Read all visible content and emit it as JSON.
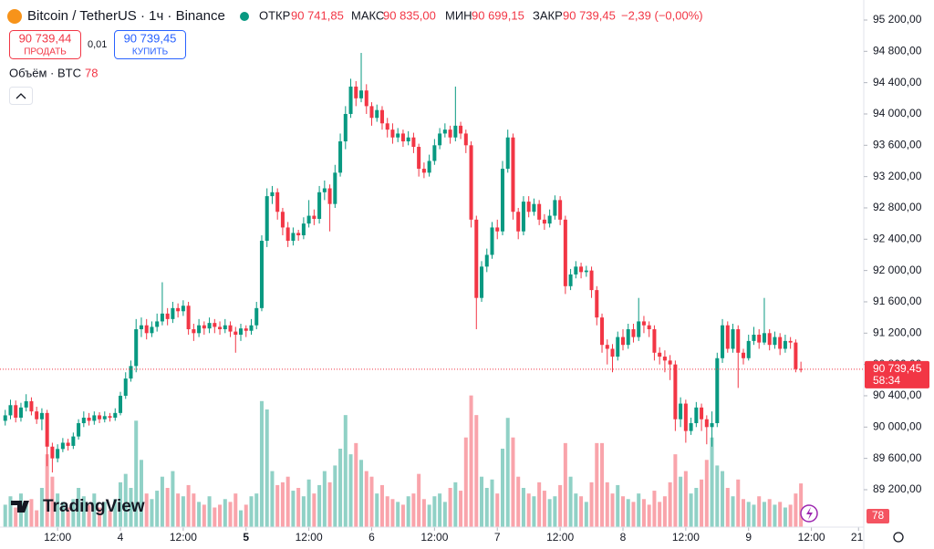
{
  "header": {
    "symbol": "Bitcoin / TetherUS · 1ч · Binance",
    "ohlc": [
      {
        "key": "ОТКР",
        "value": "90 741,85"
      },
      {
        "key": "МАКС",
        "value": "90 835,00"
      },
      {
        "key": "МИН",
        "value": "90 699,15"
      },
      {
        "key": "ЗАКР",
        "value": "90 739,45"
      }
    ],
    "change": "−2,39 (−0,00%)"
  },
  "trade": {
    "sell_price": "90 739,44",
    "sell": "ПРОДАТЬ",
    "spread": "0,01",
    "buy_price": "90 739,45",
    "buy": "КУПИТЬ"
  },
  "volume_legend": {
    "label": "Объём · BTC",
    "value": "78"
  },
  "price_tag": {
    "price": "90 739,45",
    "countdown": "58:34"
  },
  "volume_tag": "78",
  "brand": "TradingView",
  "chart_data": {
    "type": "candlestick",
    "up_color": "#089981",
    "down_color": "#f23645",
    "grid": false,
    "xlim": [
      -1,
      164
    ],
    "xticks": [
      {
        "value": 10,
        "label": "12:00"
      },
      {
        "value": 22,
        "label": "4"
      },
      {
        "value": 34,
        "label": "12:00"
      },
      {
        "value": 46,
        "label": "5"
      },
      {
        "value": 58,
        "label": "12:00"
      },
      {
        "value": 70,
        "label": "6"
      },
      {
        "value": 82,
        "label": "12:00"
      },
      {
        "value": 94,
        "label": "7"
      },
      {
        "value": 106,
        "label": "12:00"
      },
      {
        "value": 118,
        "label": "8"
      },
      {
        "value": 130,
        "label": "12:00"
      },
      {
        "value": 142,
        "label": "9"
      },
      {
        "value": 154,
        "label": "12:00"
      },
      {
        "value": 163,
        "label": "21:"
      }
    ],
    "ylim": [
      88722,
      95456
    ],
    "yticks": [
      {
        "value": 89200,
        "label": "89 200,00"
      },
      {
        "value": 89600,
        "label": "89 600,00"
      },
      {
        "value": 90000,
        "label": "90 000,00"
      },
      {
        "value": 90400,
        "label": "90 400,00"
      },
      {
        "value": 90800,
        "label": "90 800,00"
      },
      {
        "value": 91200,
        "label": "91 200,00"
      },
      {
        "value": 91600,
        "label": "91 600,00"
      },
      {
        "value": 92000,
        "label": "92 000,00"
      },
      {
        "value": 92400,
        "label": "92 400,00"
      },
      {
        "value": 92800,
        "label": "92 800,00"
      },
      {
        "value": 93200,
        "label": "93 200,00"
      },
      {
        "value": 93600,
        "label": "93 600,00"
      },
      {
        "value": 94000,
        "label": "94 000,00"
      },
      {
        "value": 94400,
        "label": "94 400,00"
      },
      {
        "value": 94800,
        "label": "94 800,00"
      },
      {
        "value": 95200,
        "label": "95 200,00"
      }
    ],
    "vlim": [
      0,
      350
    ],
    "open": [
      90080,
      90150,
      90280,
      90120,
      90250,
      90330,
      90200,
      90100,
      90180,
      89750,
      89600,
      89720,
      89800,
      89760,
      89880,
      90050,
      90120,
      90080,
      90150,
      90100,
      90140,
      90120,
      90180,
      90400,
      90620,
      90780,
      91250,
      91300,
      91200,
      91280,
      91350,
      91450,
      91380,
      91520,
      91480,
      91550,
      91250,
      91200,
      91300,
      91260,
      91330,
      91280,
      91250,
      91300,
      91220,
      91180,
      91260,
      91230,
      91300,
      91520,
      92380,
      92950,
      93000,
      92750,
      92550,
      92380,
      92480,
      92450,
      92600,
      92700,
      92660,
      93000,
      93050,
      92850,
      93250,
      93650,
      94000,
      94350,
      94200,
      94300,
      94100,
      93950,
      94050,
      93880,
      93800,
      93700,
      93750,
      93650,
      93700,
      93580,
      93300,
      93250,
      93400,
      93600,
      93750,
      93800,
      93700,
      93850,
      93750,
      93600,
      92650,
      91650,
      92050,
      92200,
      92550,
      92500,
      93300,
      93700,
      92750,
      92500,
      92880,
      92750,
      92850,
      92650,
      92600,
      92700,
      92900,
      92650,
      91800,
      91950,
      92050,
      91980,
      92000,
      91750,
      91400,
      91050,
      91000,
      90900,
      91150,
      91050,
      91250,
      91150,
      91350,
      91300,
      91250,
      90950,
      90900,
      90850,
      90800,
      90100,
      90300,
      89950,
      90050,
      90250,
      90100,
      90000,
      90050,
      90880,
      91300,
      91000,
      91250,
      90950,
      90880,
      91100,
      91180,
      91080,
      91200,
      91050,
      91150,
      91000,
      91100,
      91080,
      90741.85
    ],
    "high": [
      90220,
      90350,
      90340,
      90310,
      90420,
      90380,
      90260,
      90240,
      90220,
      89800,
      89780,
      89860,
      89850,
      89930,
      90100,
      90200,
      90180,
      90200,
      90190,
      90200,
      90180,
      90240,
      90450,
      90700,
      90850,
      91380,
      91400,
      91380,
      91350,
      91450,
      91850,
      91520,
      91600,
      91580,
      91620,
      91600,
      91320,
      91380,
      91350,
      91400,
      91380,
      91350,
      91380,
      91350,
      91280,
      91320,
      91300,
      91380,
      91600,
      92450,
      93050,
      93080,
      93050,
      92800,
      92620,
      92550,
      92520,
      92680,
      92900,
      92780,
      93080,
      93150,
      93100,
      93350,
      93750,
      94100,
      94450,
      94420,
      94780,
      94380,
      94150,
      94120,
      94100,
      93950,
      93880,
      93820,
      93800,
      93780,
      93760,
      93620,
      93380,
      93480,
      93680,
      93820,
      93880,
      93850,
      94350,
      93900,
      93800,
      93650,
      92700,
      92120,
      92280,
      92620,
      92650,
      93400,
      93800,
      93750,
      92800,
      92950,
      92950,
      92920,
      92900,
      92720,
      92780,
      92960,
      92950,
      92700,
      92020,
      92120,
      92100,
      92060,
      92050,
      91800,
      91450,
      91120,
      91060,
      91220,
      91250,
      91320,
      91320,
      91650,
      91420,
      91350,
      91300,
      91020,
      90980,
      90920,
      90850,
      90380,
      90350,
      90120,
      90320,
      90300,
      90150,
      90200,
      90950,
      91380,
      91350,
      91320,
      91300,
      91000,
      91180,
      91280,
      91250,
      91650,
      91250,
      91220,
      91200,
      91180,
      91150,
      91120,
      90835
    ],
    "low": [
      90020,
      90100,
      90060,
      90070,
      90200,
      90150,
      90040,
      89960,
      89500,
      89420,
      89550,
      89680,
      89700,
      89720,
      89840,
      90000,
      90020,
      90030,
      90050,
      90060,
      90070,
      90080,
      90150,
      90360,
      90580,
      90700,
      91150,
      91120,
      91150,
      91220,
      91300,
      91300,
      91330,
      91400,
      91420,
      91180,
      91100,
      91150,
      91180,
      91200,
      91200,
      91180,
      91200,
      91150,
      90950,
      91100,
      91150,
      91180,
      91250,
      91480,
      92300,
      92850,
      92650,
      92450,
      92300,
      92320,
      92380,
      92400,
      92550,
      92580,
      92600,
      92900,
      92500,
      92800,
      93200,
      93550,
      93950,
      94100,
      94150,
      94000,
      93850,
      93900,
      93800,
      93700,
      93620,
      93640,
      93580,
      93600,
      93500,
      93200,
      93180,
      93200,
      93350,
      93550,
      93700,
      93620,
      93650,
      93680,
      93500,
      92550,
      91250,
      91600,
      91980,
      92150,
      92400,
      92450,
      93250,
      92650,
      92400,
      92450,
      92680,
      92700,
      92580,
      92520,
      92550,
      92650,
      92580,
      91700,
      91750,
      91900,
      91900,
      91920,
      91650,
      91300,
      90950,
      90800,
      90700,
      90850,
      90980,
      91000,
      91080,
      91100,
      91200,
      91150,
      90850,
      90800,
      90700,
      90600,
      89950,
      90000,
      89800,
      89900,
      90000,
      89950,
      89780,
      89750,
      90000,
      90820,
      90950,
      90950,
      90500,
      90800,
      90850,
      91050,
      91000,
      91050,
      90980,
      91000,
      90920,
      90950,
      91000,
      90700,
      90699.15
    ],
    "close": [
      90150,
      90280,
      90120,
      90250,
      90330,
      90200,
      90100,
      90180,
      89750,
      89600,
      89720,
      89800,
      89760,
      89880,
      90050,
      90120,
      90080,
      90150,
      90100,
      90140,
      90120,
      90180,
      90400,
      90620,
      90780,
      91250,
      91300,
      91200,
      91280,
      91350,
      91450,
      91380,
      91520,
      91480,
      91550,
      91250,
      91200,
      91300,
      91260,
      91330,
      91280,
      91250,
      91300,
      91220,
      91180,
      91260,
      91230,
      91300,
      91520,
      92380,
      92950,
      93000,
      92750,
      92550,
      92380,
      92480,
      92450,
      92600,
      92700,
      92660,
      93000,
      93050,
      92850,
      93250,
      93650,
      94000,
      94350,
      94200,
      94300,
      94100,
      93950,
      94050,
      93880,
      93800,
      93700,
      93750,
      93650,
      93700,
      93580,
      93300,
      93250,
      93400,
      93600,
      93750,
      93800,
      93700,
      93850,
      93750,
      93600,
      92650,
      91650,
      92050,
      92200,
      92550,
      92500,
      93300,
      93700,
      92750,
      92500,
      92880,
      92750,
      92850,
      92650,
      92600,
      92700,
      92900,
      92650,
      91800,
      91950,
      92050,
      91980,
      92000,
      91750,
      91400,
      91050,
      91000,
      90900,
      91150,
      91050,
      91250,
      91150,
      91350,
      91300,
      91250,
      90950,
      90900,
      90850,
      90800,
      90100,
      90300,
      89950,
      90050,
      90250,
      90100,
      90000,
      90050,
      90880,
      91300,
      91000,
      91250,
      90950,
      90880,
      91100,
      91180,
      91080,
      91200,
      91050,
      91150,
      91000,
      91100,
      91080,
      90741.85,
      90739.45
    ],
    "volume": [
      40,
      55,
      35,
      60,
      45,
      50,
      30,
      70,
      130,
      90,
      60,
      45,
      35,
      50,
      70,
      55,
      40,
      60,
      35,
      45,
      30,
      50,
      80,
      95,
      70,
      190,
      120,
      60,
      50,
      65,
      90,
      70,
      100,
      60,
      55,
      75,
      60,
      45,
      40,
      55,
      35,
      40,
      50,
      45,
      60,
      30,
      40,
      55,
      60,
      225,
      210,
      100,
      75,
      80,
      90,
      65,
      70,
      55,
      85,
      60,
      75,
      100,
      80,
      110,
      140,
      200,
      130,
      150,
      120,
      100,
      90,
      60,
      75,
      55,
      50,
      45,
      40,
      55,
      60,
      95,
      50,
      40,
      55,
      60,
      45,
      70,
      80,
      65,
      160,
      235,
      200,
      90,
      70,
      85,
      60,
      140,
      195,
      160,
      90,
      70,
      60,
      55,
      80,
      65,
      50,
      55,
      75,
      150,
      90,
      60,
      55,
      45,
      80,
      150,
      150,
      80,
      60,
      75,
      55,
      50,
      45,
      60,
      50,
      40,
      65,
      45,
      55,
      80,
      130,
      90,
      100,
      60,
      70,
      85,
      120,
      160,
      110,
      100,
      70,
      55,
      85,
      50,
      45,
      40,
      55,
      45,
      50,
      40,
      45,
      35,
      40,
      60,
      78
    ]
  }
}
